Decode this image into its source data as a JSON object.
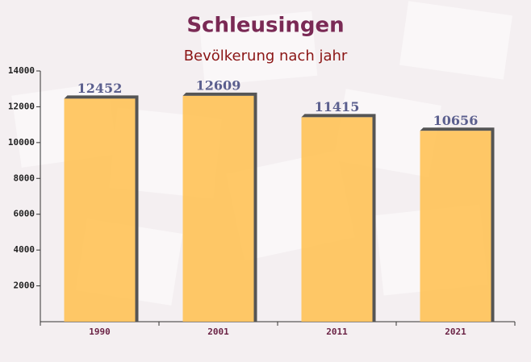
{
  "chart_data": {
    "type": "bar",
    "title": "Schleusingen",
    "subtitle": "Bevölkerung nach jahr",
    "categories": [
      "1990",
      "2001",
      "2011",
      "2021"
    ],
    "values": [
      12452,
      12609,
      11415,
      10656
    ],
    "color": "#ffc04d",
    "ylim": [
      0,
      14000
    ],
    "yticks": [
      2000,
      4000,
      6000,
      8000,
      10000,
      12000,
      14000
    ]
  }
}
